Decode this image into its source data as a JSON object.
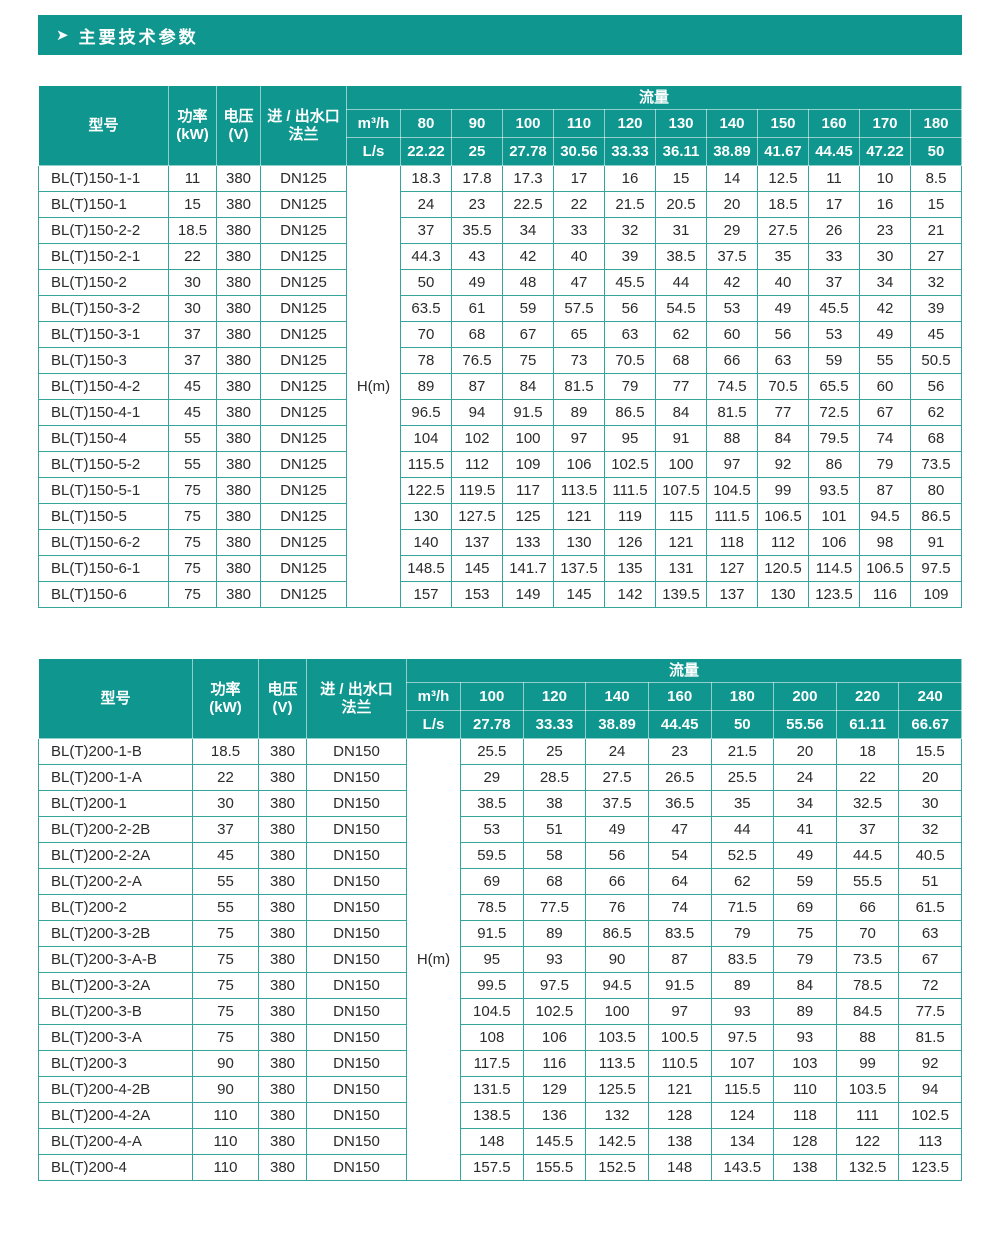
{
  "page": {
    "title": "主要技术参数",
    "title_arrow": "➤"
  },
  "colors": {
    "teal_header": "#0e968f",
    "table_border": "#35a59e",
    "text": "#2b2b2b"
  },
  "tables": [
    {
      "headers": {
        "model": "型号",
        "power": "功率\n(kW)",
        "voltage": "电压\n(V)",
        "flange": "进 / 出水口\n法兰",
        "flow": "流量",
        "m3h": "m³/h",
        "ls": "L/s",
        "head": "H(m)"
      },
      "flow_m3h": [
        "80",
        "90",
        "100",
        "110",
        "120",
        "130",
        "140",
        "150",
        "160",
        "170",
        "180"
      ],
      "flow_ls": [
        "22.22",
        "25",
        "27.78",
        "30.56",
        "33.33",
        "36.11",
        "38.89",
        "41.67",
        "44.45",
        "47.22",
        "50"
      ],
      "rows": [
        {
          "model": "BL(T)150-1-1",
          "power": "11",
          "voltage": "380",
          "flange": "DN125",
          "values": [
            "18.3",
            "17.8",
            "17.3",
            "17",
            "16",
            "15",
            "14",
            "12.5",
            "11",
            "10",
            "8.5"
          ]
        },
        {
          "model": "BL(T)150-1",
          "power": "15",
          "voltage": "380",
          "flange": "DN125",
          "values": [
            "24",
            "23",
            "22.5",
            "22",
            "21.5",
            "20.5",
            "20",
            "18.5",
            "17",
            "16",
            "15"
          ]
        },
        {
          "model": "BL(T)150-2-2",
          "power": "18.5",
          "voltage": "380",
          "flange": "DN125",
          "values": [
            "37",
            "35.5",
            "34",
            "33",
            "32",
            "31",
            "29",
            "27.5",
            "26",
            "23",
            "21"
          ]
        },
        {
          "model": "BL(T)150-2-1",
          "power": "22",
          "voltage": "380",
          "flange": "DN125",
          "values": [
            "44.3",
            "43",
            "42",
            "40",
            "39",
            "38.5",
            "37.5",
            "35",
            "33",
            "30",
            "27"
          ]
        },
        {
          "model": "BL(T)150-2",
          "power": "30",
          "voltage": "380",
          "flange": "DN125",
          "values": [
            "50",
            "49",
            "48",
            "47",
            "45.5",
            "44",
            "42",
            "40",
            "37",
            "34",
            "32"
          ]
        },
        {
          "model": "BL(T)150-3-2",
          "power": "30",
          "voltage": "380",
          "flange": "DN125",
          "values": [
            "63.5",
            "61",
            "59",
            "57.5",
            "56",
            "54.5",
            "53",
            "49",
            "45.5",
            "42",
            "39"
          ]
        },
        {
          "model": "BL(T)150-3-1",
          "power": "37",
          "voltage": "380",
          "flange": "DN125",
          "values": [
            "70",
            "68",
            "67",
            "65",
            "63",
            "62",
            "60",
            "56",
            "53",
            "49",
            "45"
          ]
        },
        {
          "model": "BL(T)150-3",
          "power": "37",
          "voltage": "380",
          "flange": "DN125",
          "values": [
            "78",
            "76.5",
            "75",
            "73",
            "70.5",
            "68",
            "66",
            "63",
            "59",
            "55",
            "50.5"
          ]
        },
        {
          "model": "BL(T)150-4-2",
          "power": "45",
          "voltage": "380",
          "flange": "DN125",
          "values": [
            "89",
            "87",
            "84",
            "81.5",
            "79",
            "77",
            "74.5",
            "70.5",
            "65.5",
            "60",
            "56"
          ]
        },
        {
          "model": "BL(T)150-4-1",
          "power": "45",
          "voltage": "380",
          "flange": "DN125",
          "values": [
            "96.5",
            "94",
            "91.5",
            "89",
            "86.5",
            "84",
            "81.5",
            "77",
            "72.5",
            "67",
            "62"
          ]
        },
        {
          "model": "BL(T)150-4",
          "power": "55",
          "voltage": "380",
          "flange": "DN125",
          "values": [
            "104",
            "102",
            "100",
            "97",
            "95",
            "91",
            "88",
            "84",
            "79.5",
            "74",
            "68"
          ]
        },
        {
          "model": "BL(T)150-5-2",
          "power": "55",
          "voltage": "380",
          "flange": "DN125",
          "values": [
            "115.5",
            "112",
            "109",
            "106",
            "102.5",
            "100",
            "97",
            "92",
            "86",
            "79",
            "73.5"
          ]
        },
        {
          "model": "BL(T)150-5-1",
          "power": "75",
          "voltage": "380",
          "flange": "DN125",
          "values": [
            "122.5",
            "119.5",
            "117",
            "113.5",
            "111.5",
            "107.5",
            "104.5",
            "99",
            "93.5",
            "87",
            "80"
          ]
        },
        {
          "model": "BL(T)150-5",
          "power": "75",
          "voltage": "380",
          "flange": "DN125",
          "values": [
            "130",
            "127.5",
            "125",
            "121",
            "119",
            "115",
            "111.5",
            "106.5",
            "101",
            "94.5",
            "86.5"
          ]
        },
        {
          "model": "BL(T)150-6-2",
          "power": "75",
          "voltage": "380",
          "flange": "DN125",
          "values": [
            "140",
            "137",
            "133",
            "130",
            "126",
            "121",
            "118",
            "112",
            "106",
            "98",
            "91"
          ]
        },
        {
          "model": "BL(T)150-6-1",
          "power": "75",
          "voltage": "380",
          "flange": "DN125",
          "values": [
            "148.5",
            "145",
            "141.7",
            "137.5",
            "135",
            "131",
            "127",
            "120.5",
            "114.5",
            "106.5",
            "97.5"
          ]
        },
        {
          "model": "BL(T)150-6",
          "power": "75",
          "voltage": "380",
          "flange": "DN125",
          "values": [
            "157",
            "153",
            "149",
            "145",
            "142",
            "139.5",
            "137",
            "130",
            "123.5",
            "116",
            "109"
          ]
        }
      ]
    },
    {
      "headers": {
        "model": "型号",
        "power": "功率\n(kW)",
        "voltage": "电压\n(V)",
        "flange": "进 / 出水口\n法兰",
        "flow": "流量",
        "m3h": "m³/h",
        "ls": "L/s",
        "head": "H(m)"
      },
      "flow_m3h": [
        "100",
        "120",
        "140",
        "160",
        "180",
        "200",
        "220",
        "240"
      ],
      "flow_ls": [
        "27.78",
        "33.33",
        "38.89",
        "44.45",
        "50",
        "55.56",
        "61.11",
        "66.67"
      ],
      "rows": [
        {
          "model": "BL(T)200-1-B",
          "power": "18.5",
          "voltage": "380",
          "flange": "DN150",
          "values": [
            "25.5",
            "25",
            "24",
            "23",
            "21.5",
            "20",
            "18",
            "15.5"
          ]
        },
        {
          "model": "BL(T)200-1-A",
          "power": "22",
          "voltage": "380",
          "flange": "DN150",
          "values": [
            "29",
            "28.5",
            "27.5",
            "26.5",
            "25.5",
            "24",
            "22",
            "20"
          ]
        },
        {
          "model": "BL(T)200-1",
          "power": "30",
          "voltage": "380",
          "flange": "DN150",
          "values": [
            "38.5",
            "38",
            "37.5",
            "36.5",
            "35",
            "34",
            "32.5",
            "30"
          ]
        },
        {
          "model": "BL(T)200-2-2B",
          "power": "37",
          "voltage": "380",
          "flange": "DN150",
          "values": [
            "53",
            "51",
            "49",
            "47",
            "44",
            "41",
            "37",
            "32"
          ]
        },
        {
          "model": "BL(T)200-2-2A",
          "power": "45",
          "voltage": "380",
          "flange": "DN150",
          "values": [
            "59.5",
            "58",
            "56",
            "54",
            "52.5",
            "49",
            "44.5",
            "40.5"
          ]
        },
        {
          "model": "BL(T)200-2-A",
          "power": "55",
          "voltage": "380",
          "flange": "DN150",
          "values": [
            "69",
            "68",
            "66",
            "64",
            "62",
            "59",
            "55.5",
            "51"
          ]
        },
        {
          "model": "BL(T)200-2",
          "power": "55",
          "voltage": "380",
          "flange": "DN150",
          "values": [
            "78.5",
            "77.5",
            "76",
            "74",
            "71.5",
            "69",
            "66",
            "61.5"
          ]
        },
        {
          "model": "BL(T)200-3-2B",
          "power": "75",
          "voltage": "380",
          "flange": "DN150",
          "values": [
            "91.5",
            "89",
            "86.5",
            "83.5",
            "79",
            "75",
            "70",
            "63"
          ]
        },
        {
          "model": "BL(T)200-3-A-B",
          "power": "75",
          "voltage": "380",
          "flange": "DN150",
          "values": [
            "95",
            "93",
            "90",
            "87",
            "83.5",
            "79",
            "73.5",
            "67"
          ]
        },
        {
          "model": "BL(T)200-3-2A",
          "power": "75",
          "voltage": "380",
          "flange": "DN150",
          "values": [
            "99.5",
            "97.5",
            "94.5",
            "91.5",
            "89",
            "84",
            "78.5",
            "72"
          ]
        },
        {
          "model": "BL(T)200-3-B",
          "power": "75",
          "voltage": "380",
          "flange": "DN150",
          "values": [
            "104.5",
            "102.5",
            "100",
            "97",
            "93",
            "89",
            "84.5",
            "77.5"
          ]
        },
        {
          "model": "BL(T)200-3-A",
          "power": "75",
          "voltage": "380",
          "flange": "DN150",
          "values": [
            "108",
            "106",
            "103.5",
            "100.5",
            "97.5",
            "93",
            "88",
            "81.5"
          ]
        },
        {
          "model": "BL(T)200-3",
          "power": "90",
          "voltage": "380",
          "flange": "DN150",
          "values": [
            "117.5",
            "116",
            "113.5",
            "110.5",
            "107",
            "103",
            "99",
            "92"
          ]
        },
        {
          "model": "BL(T)200-4-2B",
          "power": "90",
          "voltage": "380",
          "flange": "DN150",
          "values": [
            "131.5",
            "129",
            "125.5",
            "121",
            "115.5",
            "110",
            "103.5",
            "94"
          ]
        },
        {
          "model": "BL(T)200-4-2A",
          "power": "110",
          "voltage": "380",
          "flange": "DN150",
          "values": [
            "138.5",
            "136",
            "132",
            "128",
            "124",
            "118",
            "111",
            "102.5"
          ]
        },
        {
          "model": "BL(T)200-4-A",
          "power": "110",
          "voltage": "380",
          "flange": "DN150",
          "values": [
            "148",
            "145.5",
            "142.5",
            "138",
            "134",
            "128",
            "122",
            "113"
          ]
        },
        {
          "model": "BL(T)200-4",
          "power": "110",
          "voltage": "380",
          "flange": "DN150",
          "values": [
            "157.5",
            "155.5",
            "152.5",
            "148",
            "143.5",
            "138",
            "132.5",
            "123.5"
          ]
        }
      ]
    }
  ]
}
